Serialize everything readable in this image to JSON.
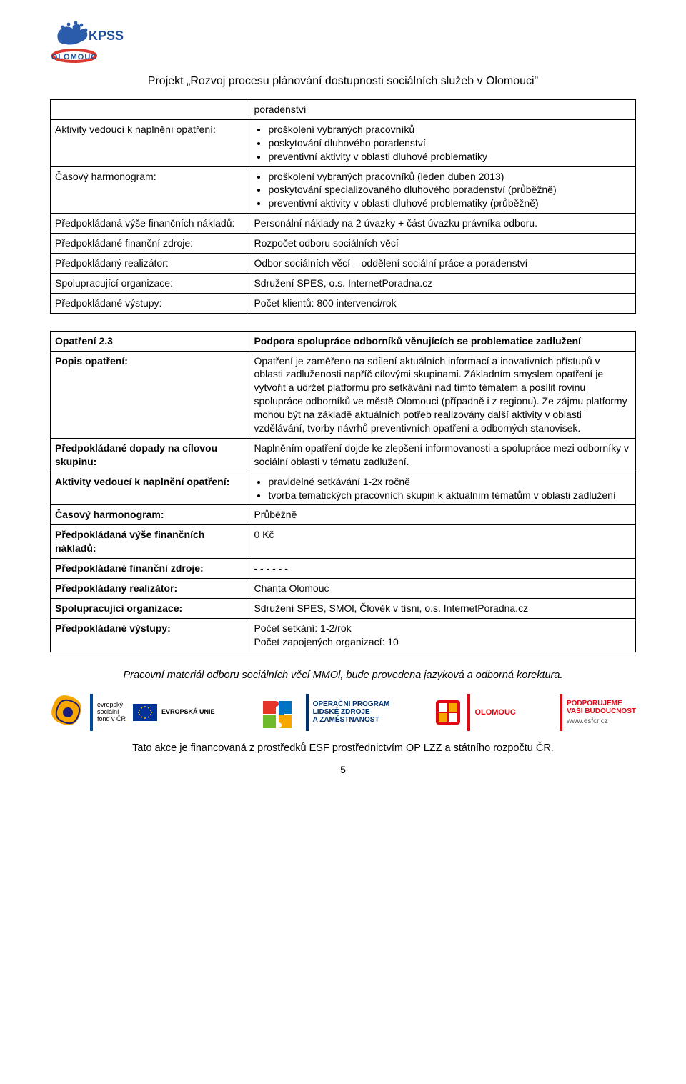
{
  "header": {
    "logo_text_top": "KPSS",
    "logo_text_bottom": "OLOMOUC",
    "title": "Projekt „Rozvoj procesu plánování dostupnosti sociálních služeb v Olomouci\""
  },
  "table1": {
    "rows": [
      {
        "label": "",
        "value_plain": "poradenství"
      },
      {
        "label": "Aktivity vedoucí k naplnění opatření:",
        "bullets": [
          "proškolení vybraných pracovníků",
          "poskytování dluhového poradenství",
          "preventivní aktivity v oblasti dluhové problematiky"
        ]
      },
      {
        "label": "Časový harmonogram:",
        "bullets": [
          "proškolení vybraných pracovníků (leden duben 2013)",
          "poskytování specializovaného dluhového poradenství (průběžně)",
          "preventivní aktivity v oblasti dluhové problematiky (průběžně)"
        ]
      },
      {
        "label": "Předpokládaná výše finančních nákladů:",
        "value_plain": "Personální náklady na 2 úvazky + část úvazku právníka odboru."
      },
      {
        "label": "Předpokládané finanční zdroje:",
        "value_plain": "Rozpočet odboru sociálních věcí"
      },
      {
        "label": "Předpokládaný realizátor:",
        "value_plain": "Odbor sociálních věcí – oddělení sociální práce a poradenství"
      },
      {
        "label": "Spolupracující organizace:",
        "value_plain": "Sdružení SPES, o.s. InternetPoradna.cz"
      },
      {
        "label": "Předpokládané výstupy:",
        "value_plain": "Počet klientů: 800 intervencí/rok"
      }
    ]
  },
  "table2": {
    "rows": [
      {
        "label_bold": "Opatření 2.3",
        "value_bold": "Podpora spolupráce odborníků věnujících se problematice zadlužení"
      },
      {
        "label_bold": "Popis opatření:",
        "value_plain": "Opatření je zaměřeno na sdílení aktuálních informací a inovativních přístupů v oblasti zadluženosti napříč cílovými skupinami. Základním smyslem opatření je vytvořit a udržet platformu pro setkávání nad tímto tématem a posílit rovinu spolupráce odborníků ve městě Olomouci (případně i z regionu). Ze zájmu platformy mohou být na základě aktuálních potřeb realizovány další aktivity v oblasti vzdělávání, tvorby návrhů preventivních opatření a odborných stanovisek."
      },
      {
        "label_bold": "Předpokládané dopady na cílovou skupinu:",
        "value_plain": "Naplněním opatření dojde ke zlepšení informovanosti a spolupráce mezi odborníky v sociální oblasti v tématu zadlužení."
      },
      {
        "label_bold": "Aktivity vedoucí k naplnění opatření:",
        "bullets": [
          "pravidelné setkávání 1-2x ročně",
          "tvorba tematických pracovních skupin k aktuálním tématům v oblasti zadlužení"
        ]
      },
      {
        "label_bold": "Časový harmonogram:",
        "value_plain": "Průběžně"
      },
      {
        "label_bold": "Předpokládaná výše finančních nákladů:",
        "value_plain": "0 Kč"
      },
      {
        "label_bold": "Předpokládané finanční zdroje:",
        "value_plain": "- - - - - -"
      },
      {
        "label_bold": "Předpokládaný realizátor:",
        "value_plain": "Charita Olomouc"
      },
      {
        "label_bold": "Spolupracující organizace:",
        "value_plain": "Sdružení SPES, SMOl, Člověk v tísni, o.s. InternetPoradna.cz"
      },
      {
        "label_bold": "Předpokládané výstupy:",
        "value_multiline": [
          "Počet setkání: 1-2/rok",
          "Počet zapojených organizací: 10"
        ]
      }
    ]
  },
  "footer": {
    "note": "Pracovní materiál odboru sociálních věcí MMOl, bude provedena jazyková a odborná korektura.",
    "line": "Tato akce je financovaná z prostředků ESF prostřednictvím OP LZZ a státního rozpočtu ČR.",
    "page_num": "5",
    "logos": {
      "esf": {
        "line1": "evropský",
        "line2": "sociální",
        "line3": "fond v ČR",
        "eu": "EVROPSKÁ UNIE",
        "bar_color": "#004a99"
      },
      "oplzz": {
        "line1": "OPERAČNÍ PROGRAM",
        "line2": "LIDSKÉ ZDROJE",
        "line3": "A ZAMĚSTNANOST",
        "bar_color": "#00316f",
        "piece_colors": [
          "#e6342a",
          "#0073c7",
          "#6fb92c",
          "#f7a600"
        ]
      },
      "olom": {
        "label": "OLOMOUC",
        "bar_color": "#e30613"
      },
      "esfcr": {
        "line1": "PODPORUJEME",
        "line2": "VAŠI BUDOUCNOST",
        "url": "www.esfcr.cz",
        "bar_color": "#e30613"
      }
    }
  },
  "colors": {
    "logo_hand": "#2a5cab",
    "logo_olo_red": "#d83a2f",
    "logo_text_blue": "#1f4e98"
  }
}
